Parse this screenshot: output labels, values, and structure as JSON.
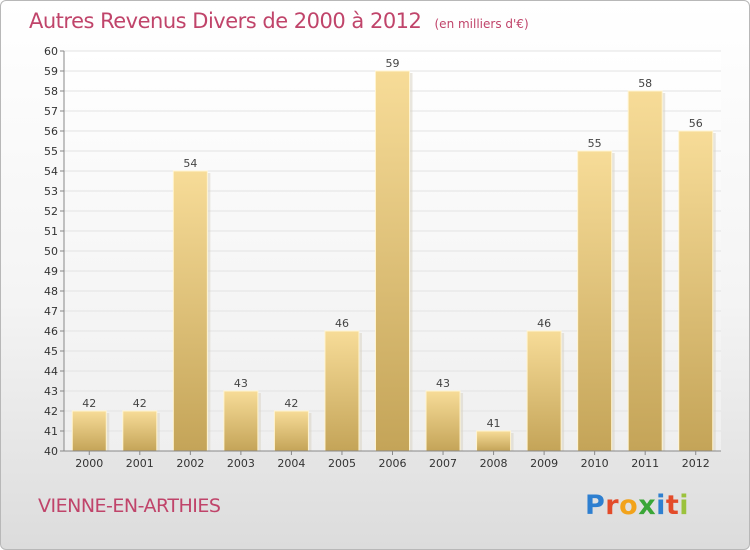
{
  "header": {
    "title": "Autres Revenus Divers de 2000 à 2012",
    "subtitle": "(en milliers d'€)"
  },
  "footer": {
    "commune": "VIENNE-EN-ARTHIES",
    "brand_letters": [
      "P",
      "r",
      "o",
      "x",
      "i",
      "t",
      "i"
    ],
    "brand_colors": [
      "#2e7fd0",
      "#e34b2a",
      "#f2a31b",
      "#3aa637",
      "#2e7fd0",
      "#e34b2a",
      "#9bc23c"
    ]
  },
  "chart_data": {
    "type": "bar",
    "title": "Autres Revenus Divers de 2000 à 2012",
    "subtitle": "(en milliers d'€)",
    "categories": [
      "2000",
      "2001",
      "2002",
      "2003",
      "2004",
      "2005",
      "2006",
      "2007",
      "2008",
      "2009",
      "2010",
      "2011",
      "2012"
    ],
    "values": [
      42,
      42,
      54,
      43,
      42,
      46,
      59,
      43,
      41,
      46,
      55,
      58,
      56
    ],
    "value_labels": [
      "42",
      "42",
      "54",
      "43",
      "42",
      "46",
      "59",
      "43",
      "41",
      "46",
      "55",
      "58",
      "56"
    ],
    "y_ticks": [
      "40",
      "41",
      "42",
      "43",
      "44",
      "45",
      "46",
      "47",
      "48",
      "49",
      "50",
      "51",
      "52",
      "53",
      "54",
      "55",
      "56",
      "57",
      "58",
      "59",
      "60"
    ],
    "ylim": [
      40,
      60
    ],
    "grid": true,
    "bar_color": "#e8c87c"
  }
}
